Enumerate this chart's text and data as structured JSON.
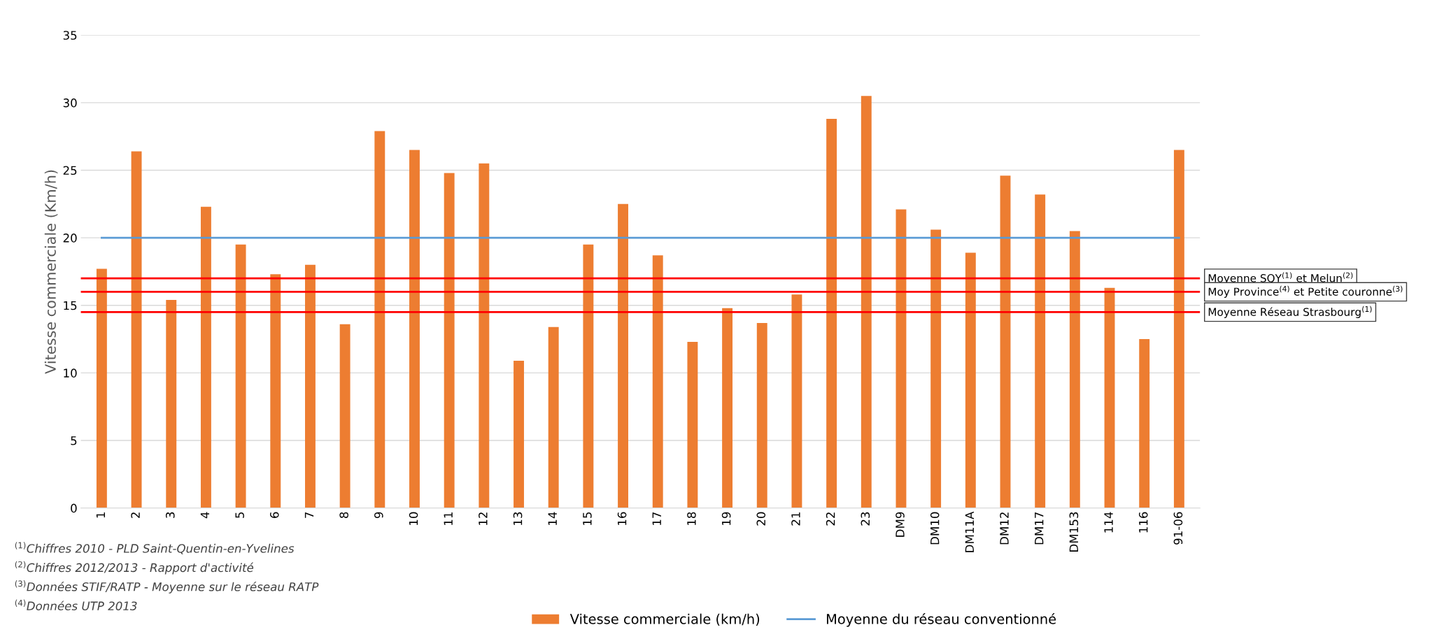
{
  "chart_data": {
    "type": "bar",
    "ylabel": "Vitesse commerciale (Km/h)",
    "categories": [
      "1",
      "2",
      "3",
      "4",
      "5",
      "6",
      "7",
      "8",
      "9",
      "10",
      "11",
      "12",
      "13",
      "14",
      "15",
      "16",
      "17",
      "18",
      "19",
      "20",
      "21",
      "22",
      "23",
      "DM9",
      "DM10",
      "DM11A",
      "DM12",
      "DM17",
      "DM153",
      "114",
      "116",
      "91-06"
    ],
    "series": [
      {
        "name": "Vitesse commerciale (km/h)",
        "color": "#ed7d31",
        "values": [
          17.7,
          26.4,
          15.4,
          22.3,
          19.5,
          17.3,
          18.0,
          13.6,
          27.9,
          26.5,
          24.8,
          25.5,
          10.9,
          13.4,
          19.5,
          22.5,
          18.7,
          12.3,
          14.8,
          13.7,
          15.8,
          28.8,
          30.5,
          22.1,
          20.6,
          18.9,
          24.6,
          23.2,
          20.5,
          16.3,
          12.5,
          26.5
        ]
      },
      {
        "name": "Moyenne du réseau conventionné",
        "type": "line",
        "color": "#5b9bd5",
        "values": [
          20,
          20,
          20,
          20,
          20,
          20,
          20,
          20,
          20,
          20,
          20,
          20,
          20,
          20,
          20,
          20,
          20,
          20,
          20,
          20,
          20,
          20,
          20,
          20,
          20,
          20,
          20,
          20,
          20,
          20,
          20,
          20
        ]
      }
    ],
    "ylim": [
      0,
      35
    ],
    "yticks": [
      0,
      5,
      10,
      15,
      20,
      25,
      30,
      35
    ],
    "ref_lines": [
      {
        "axis": "y",
        "value": 17,
        "label": "Moyenne SQY$^{(1)}$ et Melun$^{(2)}$",
        "color": "#ff0000"
      },
      {
        "axis": "y",
        "value": 16,
        "label": "Moy Province$^{(4)}$ et Petite couronne$^{(3)}$",
        "color": "#ff0000"
      },
      {
        "axis": "y",
        "value": 14.5,
        "label": "Moyenne Réseau Strasbourg$^{(1)}$",
        "color": "#ff0000"
      }
    ],
    "annotations": [
      "$^{(1)}$Chiffres 2010 - PLD Saint-Quentin-en-Yvelines",
      "$^{(2)}$Chiffres 2012/2013 - Rapport d'activité",
      "$^{(3)}$Données STIF/RATP - Moyenne sur le réseau RATP",
      "$^{(4)}$Données UTP 2013"
    ],
    "grid": "y",
    "legend": "bottom"
  }
}
